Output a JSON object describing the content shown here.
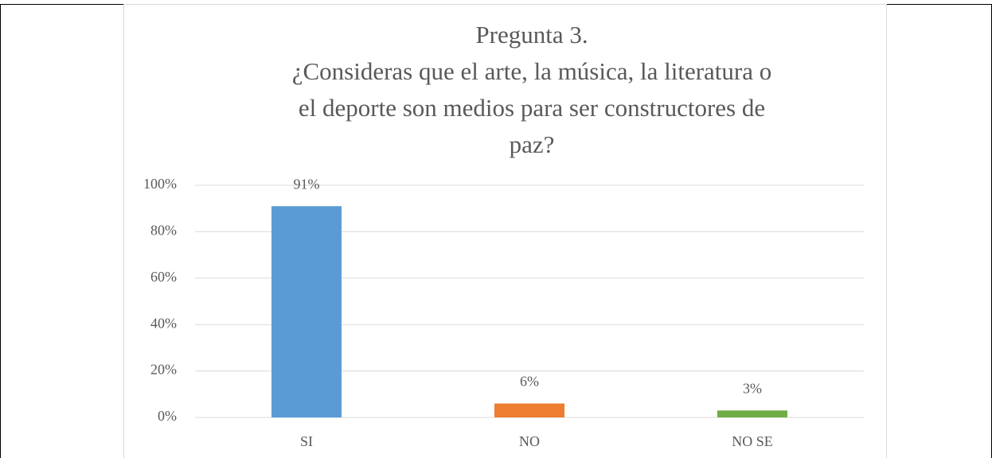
{
  "chart_data": {
    "type": "bar",
    "title": [
      "Pregunta 3.",
      "¿Consideras que el arte, la música, la literatura o",
      "el deporte son medios para ser constructores de",
      "paz?"
    ],
    "categories": [
      "SI",
      "NO",
      "NO SE"
    ],
    "values": [
      91,
      6,
      3
    ],
    "value_labels": [
      "91%",
      "6%",
      "3%"
    ],
    "colors": [
      "#5b9bd5",
      "#ed7d31",
      "#70ad47"
    ],
    "ylim": [
      0,
      100
    ],
    "yticks": [
      {
        "value": 0,
        "label": "0%"
      },
      {
        "value": 20,
        "label": "20%"
      },
      {
        "value": 40,
        "label": "40%"
      },
      {
        "value": 60,
        "label": "60%"
      },
      {
        "value": 80,
        "label": "80%"
      },
      {
        "value": 100,
        "label": "100%"
      }
    ],
    "grid": true
  }
}
